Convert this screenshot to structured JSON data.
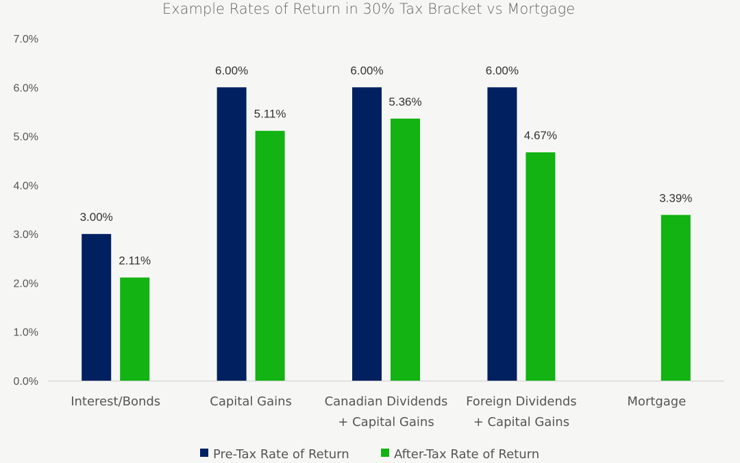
{
  "chart_data": {
    "type": "bar",
    "title": "Example Rates of Return in 30% Tax Bracket vs Mortgage",
    "xlabel": "",
    "ylabel": "",
    "ylim": [
      0,
      7
    ],
    "y_ticks": [
      0,
      1,
      2,
      3,
      4,
      5,
      6,
      7
    ],
    "y_tick_labels": [
      "0.0%",
      "1.0%",
      "2.0%",
      "3.0%",
      "4.0%",
      "5.0%",
      "6.0%",
      "7.0%"
    ],
    "grid": false,
    "legend_position": "bottom",
    "categories": [
      [
        "Interest/Bonds"
      ],
      [
        "Capital Gains"
      ],
      [
        "Canadian Dividends",
        "+ Capital Gains"
      ],
      [
        "Foreign Dividends",
        "+ Capital Gains"
      ],
      [
        "Mortgage"
      ]
    ],
    "series": [
      {
        "name": "Pre-Tax Rate of Return",
        "color": "#002060",
        "values": [
          3.0,
          6.0,
          6.0,
          6.0,
          null
        ],
        "labels": [
          "3.00%",
          "6.00%",
          "6.00%",
          "6.00%",
          null
        ]
      },
      {
        "name": "After-Tax Rate of Return",
        "color": "#12b312",
        "values": [
          2.11,
          5.11,
          5.36,
          4.67,
          3.39
        ],
        "labels": [
          "2.11%",
          "5.11%",
          "5.36%",
          "4.67%",
          "3.39%"
        ]
      }
    ],
    "axis_color": "#d9d9d9"
  }
}
